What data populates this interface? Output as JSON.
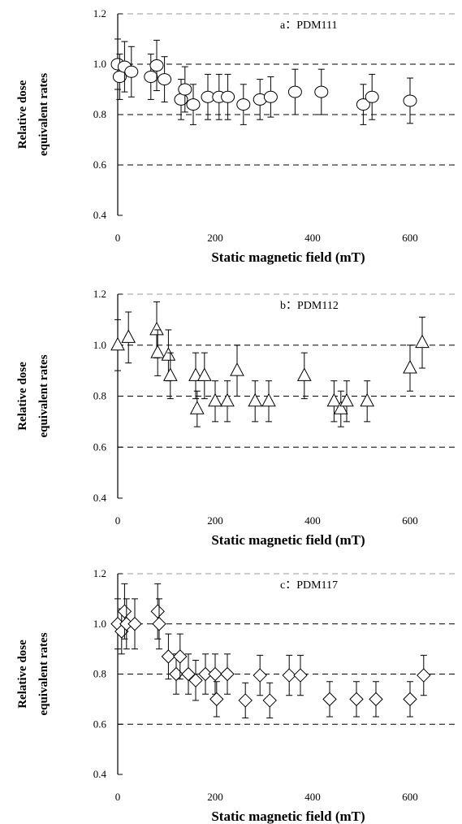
{
  "chart_data": [
    {
      "type": "scatter",
      "title": "a：PDM111",
      "marker": "circle",
      "xlabel": "Static magnetic field (mT)",
      "ylabel": [
        "Relative dose",
        "equivalent rates"
      ],
      "xlim": [
        0,
        700
      ],
      "ylim": [
        0.4,
        1.2
      ],
      "xticks": [
        0,
        200,
        400,
        600
      ],
      "yticks": [
        0.4,
        0.6,
        0.8,
        1.0,
        1.2
      ],
      "ytick_labels": [
        "0.4",
        "0.6",
        "0.8",
        "1.0",
        "1.2"
      ],
      "grid": "dashed horizontal",
      "points": [
        {
          "x": 0,
          "y": 1.0,
          "err": 0.1
        },
        {
          "x": 4,
          "y": 0.95,
          "err": 0.09
        },
        {
          "x": 14,
          "y": 0.99,
          "err": 0.1
        },
        {
          "x": 28,
          "y": 0.97,
          "err": 0.1
        },
        {
          "x": 68,
          "y": 0.95,
          "err": 0.09
        },
        {
          "x": 80,
          "y": 0.995,
          "err": 0.1
        },
        {
          "x": 96,
          "y": 0.94,
          "err": 0.09
        },
        {
          "x": 130,
          "y": 0.86,
          "err": 0.08
        },
        {
          "x": 138,
          "y": 0.9,
          "err": 0.09
        },
        {
          "x": 155,
          "y": 0.84,
          "err": 0.08
        },
        {
          "x": 185,
          "y": 0.87,
          "err": 0.09
        },
        {
          "x": 208,
          "y": 0.87,
          "err": 0.09
        },
        {
          "x": 226,
          "y": 0.87,
          "err": 0.09
        },
        {
          "x": 258,
          "y": 0.84,
          "err": 0.08
        },
        {
          "x": 292,
          "y": 0.86,
          "err": 0.08
        },
        {
          "x": 314,
          "y": 0.87,
          "err": 0.08
        },
        {
          "x": 364,
          "y": 0.89,
          "err": 0.09
        },
        {
          "x": 418,
          "y": 0.89,
          "err": 0.09
        },
        {
          "x": 504,
          "y": 0.84,
          "err": 0.08
        },
        {
          "x": 522,
          "y": 0.87,
          "err": 0.09
        },
        {
          "x": 600,
          "y": 0.855,
          "err": 0.09
        }
      ]
    },
    {
      "type": "scatter",
      "title": "b：PDM112",
      "marker": "triangle",
      "xlabel": "Static magnetic field (mT)",
      "ylabel": [
        "Relative dose",
        "equivalent rates"
      ],
      "xlim": [
        0,
        700
      ],
      "ylim": [
        0.4,
        1.2
      ],
      "xticks": [
        0,
        200,
        400,
        600
      ],
      "yticks": [
        0.4,
        0.6,
        0.8,
        1.0,
        1.2
      ],
      "ytick_labels": [
        "0.4",
        "0.6",
        "0.8",
        "1.0",
        "1.2"
      ],
      "grid": "dashed horizontal",
      "points": [
        {
          "x": 0,
          "y": 1.0,
          "err": 0.1
        },
        {
          "x": 22,
          "y": 1.03,
          "err": 0.1
        },
        {
          "x": 80,
          "y": 1.06,
          "err": 0.11
        },
        {
          "x": 82,
          "y": 0.97,
          "err": 0.09
        },
        {
          "x": 104,
          "y": 0.96,
          "err": 0.1
        },
        {
          "x": 108,
          "y": 0.88,
          "err": 0.09
        },
        {
          "x": 160,
          "y": 0.88,
          "err": 0.09
        },
        {
          "x": 163,
          "y": 0.75,
          "err": 0.07
        },
        {
          "x": 178,
          "y": 0.88,
          "err": 0.09
        },
        {
          "x": 200,
          "y": 0.78,
          "err": 0.08
        },
        {
          "x": 225,
          "y": 0.78,
          "err": 0.08
        },
        {
          "x": 245,
          "y": 0.9,
          "err": 0.1
        },
        {
          "x": 282,
          "y": 0.78,
          "err": 0.08
        },
        {
          "x": 310,
          "y": 0.78,
          "err": 0.08
        },
        {
          "x": 383,
          "y": 0.88,
          "err": 0.09
        },
        {
          "x": 444,
          "y": 0.78,
          "err": 0.08
        },
        {
          "x": 458,
          "y": 0.75,
          "err": 0.07
        },
        {
          "x": 470,
          "y": 0.78,
          "err": 0.08
        },
        {
          "x": 512,
          "y": 0.78,
          "err": 0.08
        },
        {
          "x": 600,
          "y": 0.91,
          "err": 0.09
        },
        {
          "x": 625,
          "y": 1.01,
          "err": 0.1
        }
      ]
    },
    {
      "type": "scatter",
      "title": "c：PDM117",
      "marker": "diamond",
      "xlabel": "Static magnetic field (mT)",
      "ylabel": [
        "Relative dose",
        "equivalent rates"
      ],
      "xlim": [
        0,
        700
      ],
      "ylim": [
        0.4,
        1.2
      ],
      "xticks": [
        0,
        200,
        400,
        600
      ],
      "yticks": [
        0.4,
        0.6,
        0.8,
        1.0,
        1.2
      ],
      "ytick_labels": [
        "0.4",
        "0.6",
        "0.8",
        "1.0",
        "1.2"
      ],
      "grid": "dashed horizontal",
      "points": [
        {
          "x": 0,
          "y": 1.0,
          "err": 0.1
        },
        {
          "x": 8,
          "y": 0.97,
          "err": 0.09
        },
        {
          "x": 14,
          "y": 1.05,
          "err": 0.11
        },
        {
          "x": 18,
          "y": 1.0,
          "err": 0.1
        },
        {
          "x": 35,
          "y": 1.0,
          "err": 0.1
        },
        {
          "x": 82,
          "y": 1.05,
          "err": 0.11
        },
        {
          "x": 85,
          "y": 1.0,
          "err": 0.1
        },
        {
          "x": 104,
          "y": 0.87,
          "err": 0.09
        },
        {
          "x": 120,
          "y": 0.8,
          "err": 0.08
        },
        {
          "x": 128,
          "y": 0.87,
          "err": 0.09
        },
        {
          "x": 145,
          "y": 0.8,
          "err": 0.08
        },
        {
          "x": 160,
          "y": 0.775,
          "err": 0.08
        },
        {
          "x": 180,
          "y": 0.8,
          "err": 0.08
        },
        {
          "x": 200,
          "y": 0.8,
          "err": 0.08
        },
        {
          "x": 203,
          "y": 0.7,
          "err": 0.07
        },
        {
          "x": 225,
          "y": 0.8,
          "err": 0.08
        },
        {
          "x": 262,
          "y": 0.695,
          "err": 0.07
        },
        {
          "x": 292,
          "y": 0.795,
          "err": 0.08
        },
        {
          "x": 312,
          "y": 0.695,
          "err": 0.07
        },
        {
          "x": 352,
          "y": 0.795,
          "err": 0.08
        },
        {
          "x": 375,
          "y": 0.795,
          "err": 0.08
        },
        {
          "x": 435,
          "y": 0.7,
          "err": 0.07
        },
        {
          "x": 490,
          "y": 0.7,
          "err": 0.07
        },
        {
          "x": 530,
          "y": 0.7,
          "err": 0.07
        },
        {
          "x": 600,
          "y": 0.7,
          "err": 0.07
        },
        {
          "x": 628,
          "y": 0.795,
          "err": 0.08
        }
      ]
    }
  ]
}
